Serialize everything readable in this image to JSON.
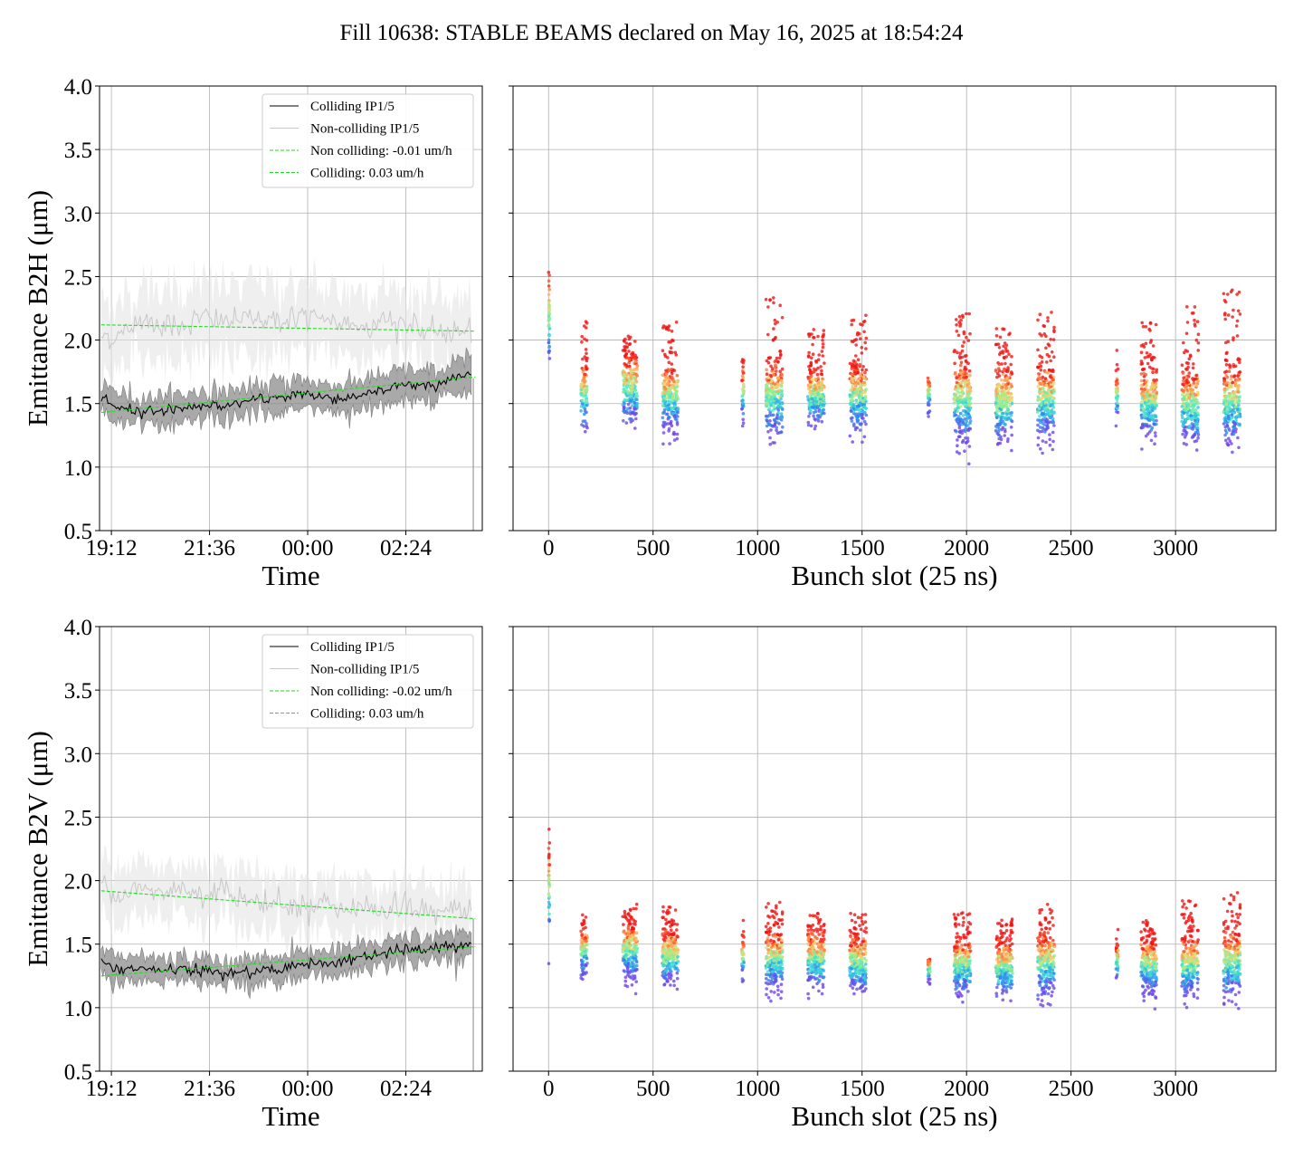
{
  "title": "Fill 10638: STABLE BEAMS declared on May 16, 2025 at 18:54:24",
  "colors": {
    "colliding": "#000000",
    "non_colliding": "#c8c8c8",
    "fit": "#22dd22",
    "colliding_band": "#8c8c8c",
    "non_colliding_band": "#e4e4e4"
  },
  "chart_data": [
    {
      "id": "h-time",
      "type": "line",
      "xlabel": "Time",
      "ylabel": "Emittance B2H (μm)",
      "ylim": [
        0.5,
        4.0
      ],
      "yticks": [
        "0.5",
        "1.0",
        "1.5",
        "2.0",
        "2.5",
        "3.0",
        "3.5",
        "4.0"
      ],
      "xlim_hours": [
        18.91,
        28.27
      ],
      "xtick_labels": [
        "19:12",
        "21:36",
        "00:00",
        "02:24"
      ],
      "xtick_hours": [
        19.2,
        21.6,
        24.0,
        26.4
      ],
      "grid": true,
      "legend_position": "upper right",
      "legend": [
        "Colliding IP1/5",
        "Non-colliding IP1/5",
        "Non colliding: -0.01 um/h",
        "Colliding: 0.03 um/h"
      ],
      "x_hours": [
        18.95,
        19.4,
        19.9,
        20.4,
        20.9,
        21.4,
        21.9,
        22.4,
        22.9,
        23.4,
        23.9,
        24.4,
        24.9,
        25.4,
        25.9,
        26.4,
        26.9,
        27.4,
        27.8,
        28.0
      ],
      "series": [
        {
          "name": "Colliding IP1/5",
          "values": [
            1.52,
            1.47,
            1.44,
            1.45,
            1.46,
            1.49,
            1.48,
            1.51,
            1.53,
            1.56,
            1.58,
            1.55,
            1.54,
            1.58,
            1.6,
            1.66,
            1.63,
            1.68,
            1.72,
            1.74
          ],
          "band": 0.11
        },
        {
          "name": "Non-colliding IP1/5",
          "values": [
            2.04,
            2.02,
            2.17,
            2.13,
            2.11,
            2.18,
            2.15,
            2.16,
            2.18,
            2.15,
            2.19,
            2.14,
            2.13,
            2.12,
            2.15,
            2.13,
            2.06,
            2.07,
            2.05,
            2.08
          ],
          "band": 0.27
        }
      ],
      "fits": [
        {
          "name": "Non colliding: -0.01 um/h",
          "from": [
            18.95,
            2.12
          ],
          "to": [
            28.1,
            2.07
          ]
        },
        {
          "name": "Colliding: 0.03 um/h",
          "from": [
            18.95,
            1.43
          ],
          "to": [
            28.1,
            1.71
          ]
        }
      ]
    },
    {
      "id": "h-bunch",
      "type": "scatter",
      "xlabel": "Bunch slot (25 ns)",
      "xlim": [
        -170,
        3480
      ],
      "xticks": [
        0,
        500,
        1000,
        1500,
        2000,
        2500,
        3000
      ],
      "ylim": [
        0.5,
        4.0
      ],
      "yticks": [
        "0.5",
        "1.0",
        "1.5",
        "2.0",
        "2.5",
        "3.0",
        "3.5",
        "4.0"
      ],
      "grid": true,
      "trains": [
        {
          "start": 0,
          "end": 5,
          "median": 2.15,
          "spread": 0.2,
          "hi": 2.55
        },
        {
          "start": 155,
          "end": 185,
          "median": 1.58,
          "spread": 0.13,
          "hi": 2.15
        },
        {
          "start": 355,
          "end": 425,
          "median": 1.62,
          "spread": 0.14,
          "hi": 2.05
        },
        {
          "start": 545,
          "end": 620,
          "median": 1.55,
          "spread": 0.13,
          "hi": 2.15
        },
        {
          "start": 925,
          "end": 935,
          "median": 1.58,
          "spread": 0.1,
          "hi": 1.85
        },
        {
          "start": 1040,
          "end": 1120,
          "median": 1.55,
          "spread": 0.15,
          "hi": 2.35
        },
        {
          "start": 1240,
          "end": 1320,
          "median": 1.56,
          "spread": 0.12,
          "hi": 2.1
        },
        {
          "start": 1440,
          "end": 1520,
          "median": 1.55,
          "spread": 0.14,
          "hi": 2.2
        },
        {
          "start": 1815,
          "end": 1825,
          "median": 1.58,
          "spread": 0.08,
          "hi": 1.7
        },
        {
          "start": 1940,
          "end": 2020,
          "median": 1.52,
          "spread": 0.16,
          "hi": 2.25
        },
        {
          "start": 2140,
          "end": 2220,
          "median": 1.5,
          "spread": 0.16,
          "hi": 2.1
        },
        {
          "start": 2340,
          "end": 2420,
          "median": 1.52,
          "spread": 0.15,
          "hi": 2.25
        },
        {
          "start": 2715,
          "end": 2725,
          "median": 1.55,
          "spread": 0.1,
          "hi": 1.95
        },
        {
          "start": 2835,
          "end": 2910,
          "median": 1.5,
          "spread": 0.14,
          "hi": 2.15
        },
        {
          "start": 3030,
          "end": 3110,
          "median": 1.48,
          "spread": 0.15,
          "hi": 2.3
        },
        {
          "start": 3230,
          "end": 3310,
          "median": 1.5,
          "spread": 0.16,
          "hi": 2.4
        }
      ]
    },
    {
      "id": "v-time",
      "type": "line",
      "xlabel": "Time",
      "ylabel": "Emittance B2V (μm)",
      "ylim": [
        0.5,
        4.0
      ],
      "yticks": [
        "0.5",
        "1.0",
        "1.5",
        "2.0",
        "2.5",
        "3.0",
        "3.5",
        "4.0"
      ],
      "xlim_hours": [
        18.91,
        28.27
      ],
      "xtick_labels": [
        "19:12",
        "21:36",
        "00:00",
        "02:24"
      ],
      "xtick_hours": [
        19.2,
        21.6,
        24.0,
        26.4
      ],
      "grid": true,
      "legend_position": "upper right",
      "legend": [
        "Colliding IP1/5",
        "Non-colliding IP1/5",
        "Non colliding: -0.02 um/h",
        "Colliding: 0.03 um/h"
      ],
      "x_hours": [
        18.95,
        19.4,
        19.9,
        20.4,
        20.9,
        21.4,
        21.9,
        22.4,
        22.9,
        23.4,
        23.9,
        24.4,
        24.9,
        25.4,
        25.9,
        26.4,
        26.9,
        27.4,
        27.8,
        28.0
      ],
      "series": [
        {
          "name": "Colliding IP1/5",
          "values": [
            1.36,
            1.29,
            1.31,
            1.29,
            1.3,
            1.29,
            1.27,
            1.27,
            1.3,
            1.31,
            1.35,
            1.34,
            1.38,
            1.4,
            1.42,
            1.46,
            1.45,
            1.48,
            1.47,
            1.5
          ],
          "band": 0.1
        },
        {
          "name": "Non-colliding IP1/5",
          "values": [
            1.98,
            1.91,
            1.93,
            1.88,
            1.95,
            1.86,
            1.96,
            1.87,
            1.83,
            1.81,
            1.8,
            1.83,
            1.78,
            1.8,
            1.76,
            1.8,
            1.74,
            1.79,
            1.76,
            1.78
          ],
          "band": 0.22
        }
      ],
      "fits": [
        {
          "name": "Non colliding: -0.02 um/h",
          "from": [
            18.95,
            1.92
          ],
          "to": [
            28.1,
            1.7
          ]
        },
        {
          "name": "Colliding: 0.03 um/h",
          "from": [
            18.95,
            1.25
          ],
          "to": [
            28.1,
            1.48
          ]
        }
      ]
    },
    {
      "id": "v-bunch",
      "type": "scatter",
      "xlabel": "Bunch slot (25 ns)",
      "xlim": [
        -170,
        3480
      ],
      "xticks": [
        0,
        500,
        1000,
        1500,
        2000,
        2500,
        3000
      ],
      "ylim": [
        0.5,
        4.0
      ],
      "yticks": [
        "0.5",
        "1.0",
        "1.5",
        "2.0",
        "2.5",
        "3.0",
        "3.5",
        "4.0"
      ],
      "grid": true,
      "trains": [
        {
          "start": 0,
          "end": 5,
          "median": 1.9,
          "spread": 0.22,
          "hi": 2.5
        },
        {
          "start": 155,
          "end": 185,
          "median": 1.45,
          "spread": 0.1,
          "hi": 1.75
        },
        {
          "start": 355,
          "end": 425,
          "median": 1.45,
          "spread": 0.11,
          "hi": 1.8
        },
        {
          "start": 545,
          "end": 620,
          "median": 1.4,
          "spread": 0.11,
          "hi": 1.8
        },
        {
          "start": 925,
          "end": 935,
          "median": 1.4,
          "spread": 0.1,
          "hi": 1.62
        },
        {
          "start": 1040,
          "end": 1120,
          "median": 1.38,
          "spread": 0.12,
          "hi": 1.85
        },
        {
          "start": 1240,
          "end": 1320,
          "median": 1.38,
          "spread": 0.12,
          "hi": 1.75
        },
        {
          "start": 1440,
          "end": 1520,
          "median": 1.35,
          "spread": 0.12,
          "hi": 1.75
        },
        {
          "start": 1815,
          "end": 1825,
          "median": 1.3,
          "spread": 0.05,
          "hi": 1.38
        },
        {
          "start": 1940,
          "end": 2020,
          "median": 1.33,
          "spread": 0.12,
          "hi": 1.75
        },
        {
          "start": 2140,
          "end": 2220,
          "median": 1.32,
          "spread": 0.12,
          "hi": 1.7
        },
        {
          "start": 2340,
          "end": 2420,
          "median": 1.35,
          "spread": 0.13,
          "hi": 1.8
        },
        {
          "start": 2715,
          "end": 2725,
          "median": 1.35,
          "spread": 0.08,
          "hi": 1.5
        },
        {
          "start": 2835,
          "end": 2910,
          "median": 1.33,
          "spread": 0.11,
          "hi": 1.72
        },
        {
          "start": 3030,
          "end": 3110,
          "median": 1.33,
          "spread": 0.12,
          "hi": 1.85
        },
        {
          "start": 3230,
          "end": 3310,
          "median": 1.35,
          "spread": 0.14,
          "hi": 1.93
        }
      ]
    }
  ]
}
